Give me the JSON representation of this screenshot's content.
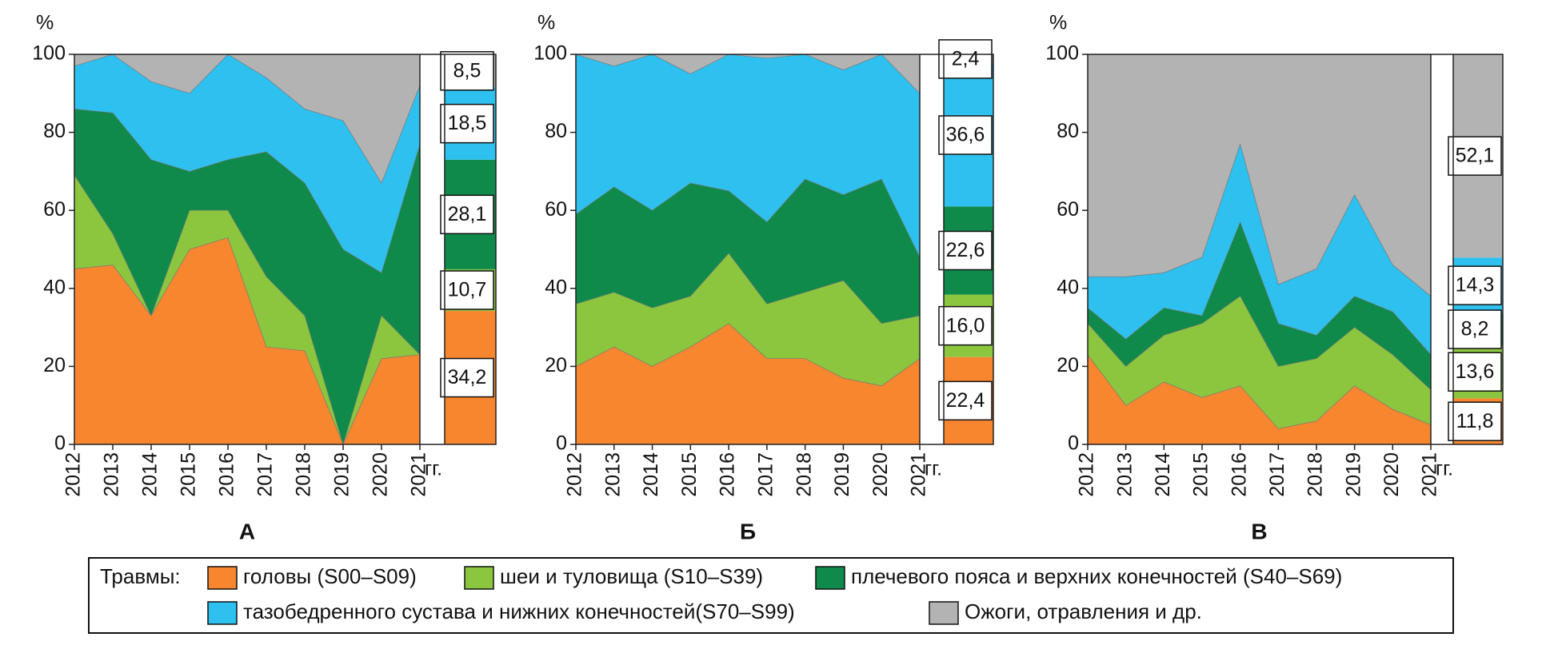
{
  "legend": {
    "title": "Травмы:",
    "items": [
      {
        "name": "головы (S00–S09)",
        "color": "#f7862f"
      },
      {
        "name": "шеи и туловища (S10–S39)",
        "color": "#8cc63f"
      },
      {
        "name": "плечевого пояса и верхних конечностей (S40–S69)",
        "color": "#0f8a4a"
      },
      {
        "name": "тазобедренного сустава и нижних конечностей(S70–S99)",
        "color": "#2ec0ef"
      },
      {
        "name": "Ожоги, отравления и др.",
        "color": "#b3b3b3"
      }
    ]
  },
  "chart_data": [
    {
      "type": "area",
      "title": "А",
      "ylabel": "%",
      "xunit": "гг.",
      "categories": [
        "2012",
        "2013",
        "2014",
        "2015",
        "2016",
        "2017",
        "2018",
        "2019",
        "2020",
        "2021"
      ],
      "ylim": [
        0,
        100
      ],
      "yticks": [
        0,
        20,
        40,
        60,
        80,
        100
      ],
      "series": [
        {
          "values": [
            45,
            46,
            33,
            50,
            53,
            25,
            24,
            0,
            22,
            23
          ]
        },
        {
          "values": [
            24,
            8,
            0,
            10,
            7,
            18,
            9,
            0,
            11,
            0
          ]
        },
        {
          "values": [
            17,
            31,
            40,
            10,
            13,
            32,
            34,
            50,
            11,
            54
          ]
        },
        {
          "values": [
            11,
            15,
            20,
            20,
            27,
            19,
            19,
            33,
            23,
            15
          ]
        },
        {
          "values": [
            3,
            0,
            7,
            10,
            0,
            6,
            14,
            17,
            33,
            8
          ]
        }
      ],
      "summary": {
        "values": [
          34.2,
          10.7,
          28.1,
          18.5,
          8.5
        ],
        "value_labels": [
          "34,2",
          "10,7",
          "28,1",
          "18,5",
          "8,5"
        ]
      }
    },
    {
      "type": "area",
      "title": "Б",
      "ylabel": "%",
      "xunit": "гг.",
      "categories": [
        "2012",
        "2013",
        "2014",
        "2015",
        "2016",
        "2017",
        "2018",
        "2019",
        "2020",
        "2021"
      ],
      "ylim": [
        0,
        100
      ],
      "yticks": [
        0,
        20,
        40,
        60,
        80,
        100
      ],
      "series": [
        {
          "values": [
            20,
            25,
            20,
            25,
            31,
            22,
            22,
            17,
            15,
            22
          ]
        },
        {
          "values": [
            16,
            14,
            15,
            13,
            18,
            14,
            17,
            25,
            16,
            11
          ]
        },
        {
          "values": [
            23,
            27,
            25,
            29,
            16,
            21,
            29,
            22,
            37,
            15
          ]
        },
        {
          "values": [
            41,
            31,
            40,
            28,
            35,
            42,
            32,
            32,
            32,
            42
          ]
        },
        {
          "values": [
            0,
            3,
            0,
            5,
            0,
            1,
            0,
            4,
            0,
            10
          ]
        }
      ],
      "summary": {
        "values": [
          22.4,
          16.0,
          22.6,
          36.6,
          2.4
        ],
        "value_labels": [
          "22,4",
          "16,0",
          "22,6",
          "36,6",
          "2,4"
        ]
      }
    },
    {
      "type": "area",
      "title": "В",
      "ylabel": "%",
      "xunit": "гг.",
      "categories": [
        "2012",
        "2013",
        "2014",
        "2015",
        "2016",
        "2017",
        "2018",
        "2019",
        "2020",
        "2021"
      ],
      "ylim": [
        0,
        100
      ],
      "yticks": [
        0,
        20,
        40,
        60,
        80,
        100
      ],
      "series": [
        {
          "values": [
            23,
            10,
            16,
            12,
            15,
            4,
            6,
            15,
            9,
            5
          ]
        },
        {
          "values": [
            8,
            10,
            12,
            19,
            23,
            16,
            16,
            15,
            14,
            9
          ]
        },
        {
          "values": [
            4,
            7,
            7,
            2,
            19,
            11,
            6,
            8,
            11,
            9
          ]
        },
        {
          "values": [
            8,
            16,
            9,
            15,
            20,
            10,
            17,
            26,
            12,
            15
          ]
        },
        {
          "values": [
            57,
            57,
            56,
            52,
            23,
            59,
            55,
            36,
            54,
            62
          ]
        }
      ],
      "summary": {
        "values": [
          11.8,
          13.6,
          8.2,
          14.3,
          52.1
        ],
        "value_labels": [
          "11,8",
          "13,6",
          "8,2",
          "14,3",
          "52,1"
        ]
      }
    }
  ]
}
